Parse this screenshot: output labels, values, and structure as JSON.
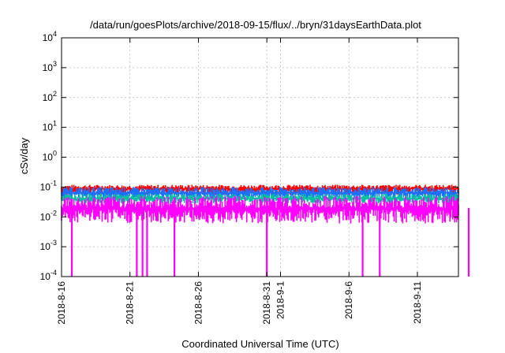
{
  "chart_data": {
    "type": "area",
    "title": "/data/run/goesPlots/archive/2018-09-15/flux/../bryn/31daysEarthData.plot",
    "xlabel": "Coordinated Universal Time (UTC)",
    "ylabel": "cSv/day",
    "y_scale": "log",
    "ylim": [
      0.0001,
      10000
    ],
    "y_ticks": [
      {
        "value": 0.0001,
        "base": "10",
        "exp": "-4"
      },
      {
        "value": 0.001,
        "base": "10",
        "exp": "-3"
      },
      {
        "value": 0.01,
        "base": "10",
        "exp": "-2"
      },
      {
        "value": 0.1,
        "base": "10",
        "exp": "-1"
      },
      {
        "value": 1,
        "base": "10",
        "exp": "0"
      },
      {
        "value": 10,
        "base": "10",
        "exp": "1"
      },
      {
        "value": 100,
        "base": "10",
        "exp": "2"
      },
      {
        "value": 1000,
        "base": "10",
        "exp": "3"
      },
      {
        "value": 10000,
        "base": "10",
        "exp": "4"
      }
    ],
    "xlim": [
      "2018-08-16",
      "2018-09-14"
    ],
    "x_tick_labels": [
      "2018-8-16",
      "2018-8-21",
      "2018-8-26",
      "2018-8-31",
      "2018-9-1",
      "2018-9-6",
      "2018-9-11"
    ],
    "grid": true,
    "series": [
      {
        "color": "#ff0000",
        "typical_value": 0.09,
        "min_value": 0.055,
        "max_value": 0.12
      },
      {
        "color": "#1f6fff",
        "typical_value": 0.065,
        "min_value": 0.04,
        "max_value": 0.1
      },
      {
        "color": "#00c0a0",
        "typical_value": 0.042,
        "min_value": 0.028,
        "max_value": 0.06
      },
      {
        "color": "#ff00ff",
        "typical_value": 0.02,
        "min_value": 0.006,
        "max_value": 0.05,
        "dropouts": [
          "2018-08-16T18:00",
          "2018-08-21T12:00",
          "2018-08-21T22:00",
          "2018-08-22T06:00",
          "2018-08-24T06:00",
          "2018-08-31T00:00",
          "2018-09-07T00:00",
          "2018-09-08T06:00",
          "2018-09-14T18:00"
        ]
      }
    ]
  }
}
